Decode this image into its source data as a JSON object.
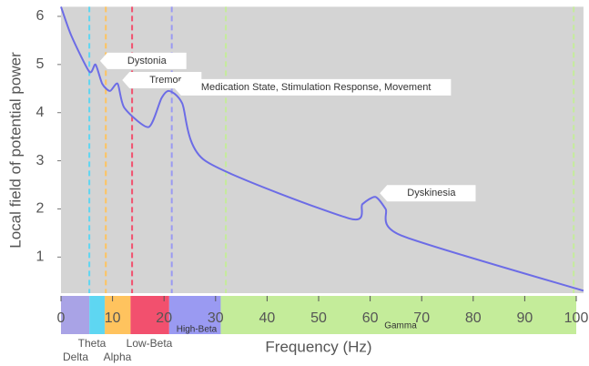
{
  "chart_data": {
    "type": "line",
    "x_label": "Frequency (Hz)",
    "y_label": "Local field of potential power",
    "xlim": [
      0,
      101.4
    ],
    "ylim": [
      0.25,
      6.2
    ],
    "xticks": [
      0,
      10,
      20,
      30,
      40,
      50,
      60,
      70,
      80,
      90,
      100
    ],
    "yticks": [
      1,
      2,
      3,
      4,
      5,
      6
    ],
    "x": [
      0,
      2,
      5.5,
      6.7,
      8,
      9.5,
      11,
      12.3,
      17,
      19.5,
      21,
      23.5,
      28,
      56,
      58.5,
      61,
      63,
      66,
      101.4
    ],
    "series": [
      {
        "color": "#6c6ce6",
        "values": [
          6.2,
          5.6,
          4.85,
          5.0,
          4.6,
          4.45,
          4.6,
          4.1,
          3.7,
          4.3,
          4.45,
          4.2,
          3.0,
          1.8,
          2.1,
          2.25,
          2.0,
          1.45,
          0.3
        ]
      }
    ],
    "annotations": [
      {
        "text": "Dystonia",
        "x": 6.7,
        "y": 5.0
      },
      {
        "text": "Tremor",
        "x": 11,
        "y": 4.6
      },
      {
        "text": "Medication State, Stimulation Response, Movement",
        "x": 21,
        "y": 4.45
      },
      {
        "text": "Dyskinesia",
        "x": 61,
        "y": 2.25
      }
    ],
    "bands": [
      {
        "name": "Delta",
        "start": 0,
        "end": 5.5,
        "color": "#a9a3e6"
      },
      {
        "name": "Theta",
        "start": 5.5,
        "end": 8.5,
        "color": "#5ed6f2"
      },
      {
        "name": "Alpha",
        "start": 8.5,
        "end": 13.5,
        "color": "#ffc35e"
      },
      {
        "name": "Low-Beta",
        "start": 13.5,
        "end": 21,
        "color": "#f2506e"
      },
      {
        "name": "High-Beta",
        "start": 21,
        "end": 31,
        "color": "#9a9af2"
      },
      {
        "name": "Gamma",
        "start": 31,
        "end": 100,
        "color": "#c4ec9a"
      }
    ],
    "dividers": [
      {
        "x": 5.5,
        "color": "#5ed6f2"
      },
      {
        "x": 8.7,
        "color": "#ffc35e"
      },
      {
        "x": 13.8,
        "color": "#f2506e"
      },
      {
        "x": 21.5,
        "color": "#9a9af2"
      },
      {
        "x": 32,
        "color": "#c4ec9a"
      },
      {
        "x": 99.5,
        "color": "#c4ec9a"
      }
    ]
  }
}
